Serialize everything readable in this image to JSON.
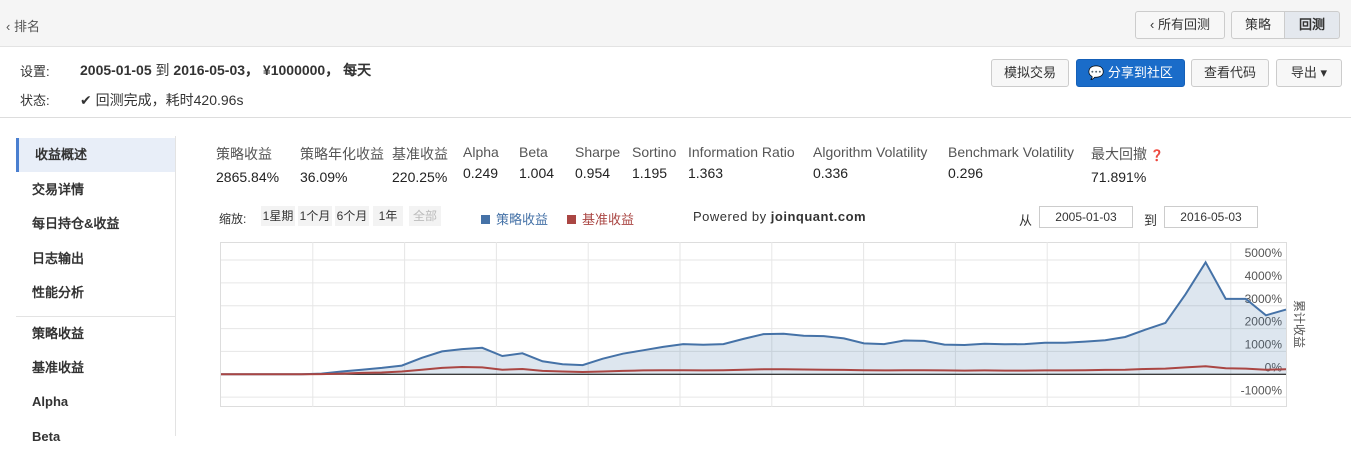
{
  "header": {
    "back": "排名",
    "all_backtests": "所有回测",
    "tabs": [
      "策略",
      "回测"
    ]
  },
  "settings": {
    "label": "设置:",
    "start": "2005-01-05",
    "to": "到",
    "end": "2016-05-03",
    "sep1": "，",
    "capital": "¥1000000",
    "sep2": "，",
    "freq": "每天"
  },
  "status": {
    "label": "状态:",
    "text": "回测完成，耗时420.96s"
  },
  "buttons": [
    "模拟交易",
    "分享到社区",
    "查看代码",
    "导出"
  ],
  "sidebar": [
    "收益概述",
    "交易详情",
    "每日持仓&收益",
    "日志输出",
    "性能分析",
    "策略收益",
    "基准收益",
    "Alpha",
    "Beta"
  ],
  "metrics": {
    "names": [
      "策略收益",
      "策略年化收益",
      "基准收益",
      "Alpha",
      "Beta",
      "Sharpe",
      "Sortino",
      "Information Ratio",
      "Algorithm Volatility",
      "Benchmark Volatility",
      "最大回撤"
    ],
    "values": [
      "2865.84%",
      "36.09%",
      "220.25%",
      "0.249",
      "1.004",
      "0.954",
      "1.195",
      "1.363",
      "0.336",
      "0.296",
      "71.891%"
    ]
  },
  "zoom": {
    "label": "缩放:",
    "options": [
      "1星期",
      "1个月",
      "6个月",
      "1年",
      "全部"
    ]
  },
  "powered": {
    "prefix": "Powered by",
    "site": "joinquant.com"
  },
  "range": {
    "from": "从",
    "start": "2005-01-03",
    "to": "到",
    "end": "2016-05-03"
  },
  "chart_data": {
    "type": "line",
    "ylabel": "累计收益",
    "ylim": [
      -1300,
      5700
    ],
    "yticks": [
      {
        "value": -1000,
        "label": "-1000%"
      },
      {
        "value": 0,
        "label": "0%"
      },
      {
        "value": 1000,
        "label": "1000%"
      },
      {
        "value": 2000,
        "label": "2000%"
      },
      {
        "value": 3000,
        "label": "3000%"
      },
      {
        "value": 4000,
        "label": "4000%"
      },
      {
        "value": 5000,
        "label": "5000%"
      }
    ],
    "grid": true,
    "series": [
      {
        "name": "策略收益",
        "color": "#4572a7",
        "values": [
          0,
          0,
          0,
          0,
          0,
          30,
          120,
          200,
          280,
          380,
          720,
          1000,
          1100,
          1160,
          800,
          920,
          570,
          440,
          400,
          680,
          900,
          1050,
          1200,
          1320,
          1290,
          1320,
          1550,
          1760,
          1770,
          1690,
          1670,
          1570,
          1350,
          1320,
          1480,
          1460,
          1300,
          1280,
          1340,
          1310,
          1320,
          1380,
          1380,
          1430,
          1490,
          1630,
          1950,
          2250,
          3500,
          4900,
          3300,
          3300,
          2580,
          2830
        ]
      },
      {
        "name": "基准收益",
        "color": "#aa4643",
        "values": [
          0,
          0,
          0,
          0,
          0,
          10,
          30,
          60,
          80,
          120,
          200,
          280,
          320,
          300,
          200,
          230,
          150,
          120,
          100,
          120,
          150,
          170,
          180,
          180,
          170,
          180,
          200,
          220,
          220,
          210,
          200,
          190,
          180,
          170,
          180,
          180,
          170,
          160,
          170,
          160,
          160,
          170,
          170,
          180,
          190,
          200,
          230,
          250,
          300,
          350,
          260,
          250,
          200,
          220
        ]
      }
    ]
  }
}
